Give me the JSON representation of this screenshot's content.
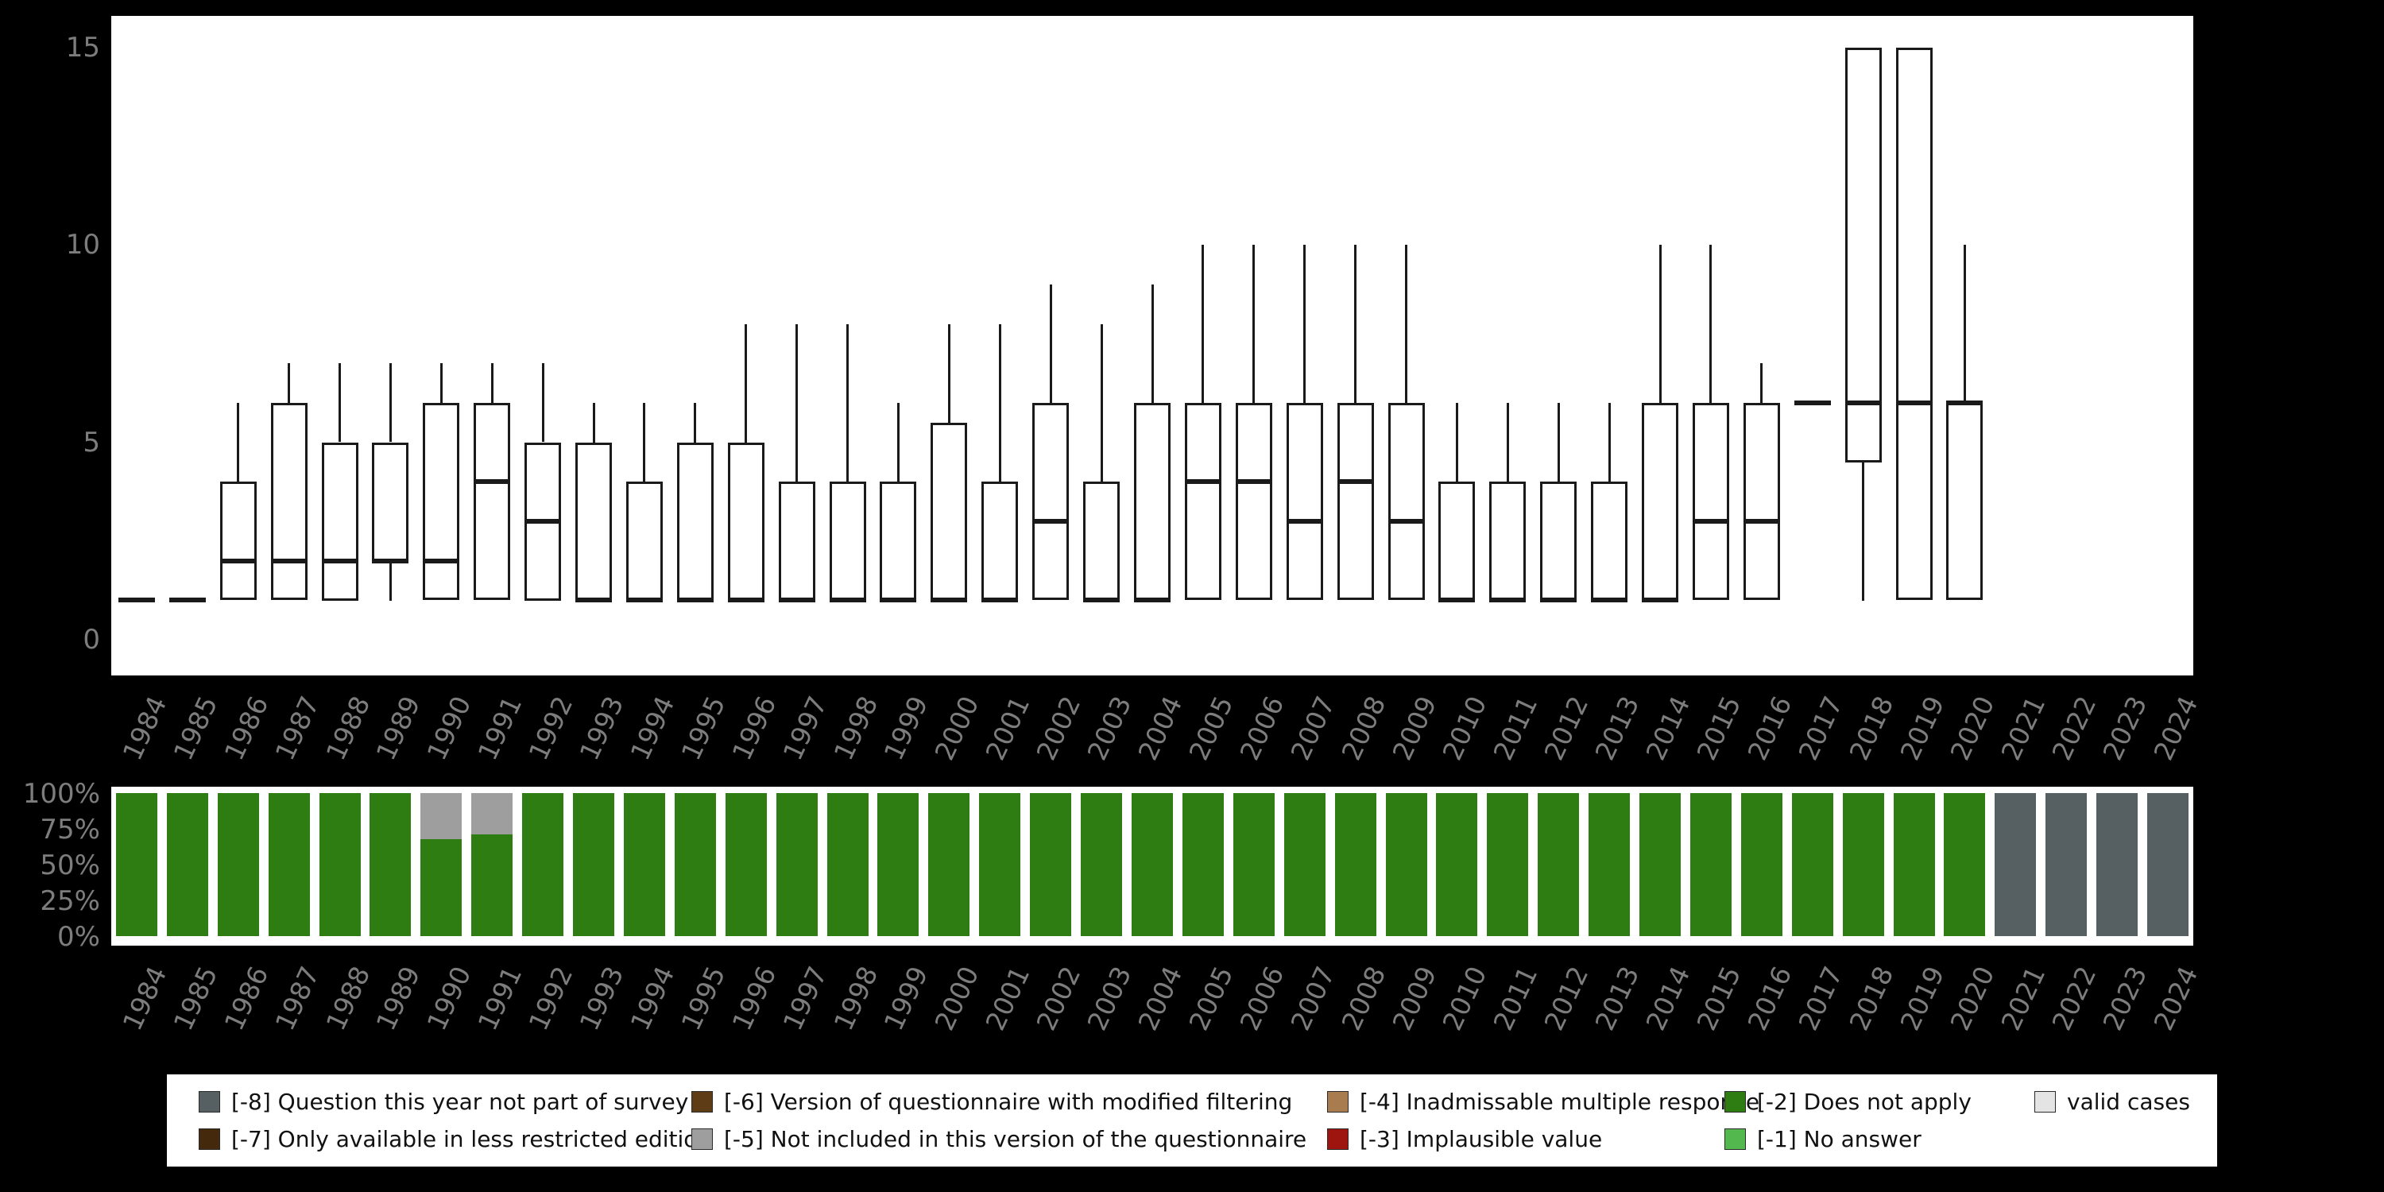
{
  "chart_data": [
    {
      "id": "boxplots-by-year",
      "type": "boxplot",
      "title": "",
      "xlabel": "",
      "ylabel": "",
      "ylim": [
        0,
        15
      ],
      "yticks": [
        0,
        5,
        10,
        15
      ],
      "grid": false,
      "years": [
        "1984",
        "1985",
        "1986",
        "1987",
        "1988",
        "1989",
        "1990",
        "1991",
        "1992",
        "1993",
        "1994",
        "1995",
        "1996",
        "1997",
        "1998",
        "1999",
        "2000",
        "2001",
        "2002",
        "2003",
        "2004",
        "2005",
        "2006",
        "2007",
        "2008",
        "2009",
        "2010",
        "2011",
        "2012",
        "2013",
        "2014",
        "2015",
        "2016",
        "2017",
        "2018",
        "2019",
        "2020",
        "2021",
        "2022",
        "2023",
        "2024"
      ],
      "boxes": [
        {
          "min": 1,
          "q1": 1,
          "median": 1,
          "q3": 1,
          "max": 1
        },
        {
          "min": 1,
          "q1": 1,
          "median": 1,
          "q3": 1,
          "max": 1
        },
        {
          "min": 1,
          "q1": 1,
          "median": 2,
          "q3": 4,
          "max": 6
        },
        {
          "min": 1,
          "q1": 1,
          "median": 2,
          "q3": 6,
          "max": 7
        },
        {
          "min": 1,
          "q1": 1,
          "median": 2,
          "q3": 5,
          "max": 7
        },
        {
          "min": 1,
          "q1": 2,
          "median": 2,
          "q3": 5,
          "max": 7
        },
        {
          "min": 1,
          "q1": 1,
          "median": 2,
          "q3": 6,
          "max": 7
        },
        {
          "min": 1,
          "q1": 1,
          "median": 4,
          "q3": 6,
          "max": 7
        },
        {
          "min": 1,
          "q1": 1,
          "median": 3,
          "q3": 5,
          "max": 7
        },
        {
          "min": 1,
          "q1": 1,
          "median": 1,
          "q3": 5,
          "max": 6
        },
        {
          "min": 1,
          "q1": 1,
          "median": 1,
          "q3": 4,
          "max": 6
        },
        {
          "min": 1,
          "q1": 1,
          "median": 1,
          "q3": 5,
          "max": 6
        },
        {
          "min": 1,
          "q1": 1,
          "median": 1,
          "q3": 5,
          "max": 8
        },
        {
          "min": 1,
          "q1": 1,
          "median": 1,
          "q3": 4,
          "max": 8
        },
        {
          "min": 1,
          "q1": 1,
          "median": 1,
          "q3": 4,
          "max": 8
        },
        {
          "min": 1,
          "q1": 1,
          "median": 1,
          "q3": 4,
          "max": 6
        },
        {
          "min": 1,
          "q1": 1,
          "median": 1,
          "q3": 5.5,
          "max": 8
        },
        {
          "min": 1,
          "q1": 1,
          "median": 1,
          "q3": 4,
          "max": 8
        },
        {
          "min": 1,
          "q1": 1,
          "median": 3,
          "q3": 6,
          "max": 9
        },
        {
          "min": 1,
          "q1": 1,
          "median": 1,
          "q3": 4,
          "max": 8
        },
        {
          "min": 1,
          "q1": 1,
          "median": 1,
          "q3": 6,
          "max": 9
        },
        {
          "min": 1,
          "q1": 1,
          "median": 4,
          "q3": 6,
          "max": 10
        },
        {
          "min": 1,
          "q1": 1,
          "median": 4,
          "q3": 6,
          "max": 10
        },
        {
          "min": 1,
          "q1": 1,
          "median": 3,
          "q3": 6,
          "max": 10
        },
        {
          "min": 1,
          "q1": 1,
          "median": 4,
          "q3": 6,
          "max": 10
        },
        {
          "min": 1,
          "q1": 1,
          "median": 3,
          "q3": 6,
          "max": 10
        },
        {
          "min": 1,
          "q1": 1,
          "median": 1,
          "q3": 4,
          "max": 6
        },
        {
          "min": 1,
          "q1": 1,
          "median": 1,
          "q3": 4,
          "max": 6
        },
        {
          "min": 1,
          "q1": 1,
          "median": 1,
          "q3": 4,
          "max": 6
        },
        {
          "min": 1,
          "q1": 1,
          "median": 1,
          "q3": 4,
          "max": 6
        },
        {
          "min": 1,
          "q1": 1,
          "median": 1,
          "q3": 6,
          "max": 10
        },
        {
          "min": 1,
          "q1": 1,
          "median": 3,
          "q3": 6,
          "max": 10
        },
        {
          "min": 1,
          "q1": 1,
          "median": 3,
          "q3": 6,
          "max": 7
        },
        {
          "min": 6,
          "q1": 6,
          "median": 6,
          "q3": 6,
          "max": 6
        },
        {
          "min": 1,
          "q1": 4.5,
          "median": 6,
          "q3": 15,
          "max": 15
        },
        {
          "min": 1,
          "q1": 1,
          "median": 6,
          "q3": 15,
          "max": 15
        },
        {
          "min": 1,
          "q1": 1,
          "median": 6,
          "q3": 6,
          "max": 10
        },
        null,
        null,
        null,
        null
      ]
    },
    {
      "id": "missing-value-composition",
      "type": "stacked-bar-percent",
      "title": "",
      "ylim": [
        0,
        100
      ],
      "yticks": [
        "0%",
        "25%",
        "50%",
        "75%",
        "100%"
      ],
      "years": [
        "1984",
        "1985",
        "1986",
        "1987",
        "1988",
        "1989",
        "1990",
        "1991",
        "1992",
        "1993",
        "1994",
        "1995",
        "1996",
        "1997",
        "1998",
        "1999",
        "2000",
        "2001",
        "2002",
        "2003",
        "2004",
        "2005",
        "2006",
        "2007",
        "2008",
        "2009",
        "2010",
        "2011",
        "2012",
        "2013",
        "2014",
        "2015",
        "2016",
        "2017",
        "2018",
        "2019",
        "2020",
        "2021",
        "2022",
        "2023",
        "2024"
      ],
      "bars": [
        {
          "segments": [
            {
              "code": "[-2]",
              "pct": 100
            }
          ]
        },
        {
          "segments": [
            {
              "code": "[-2]",
              "pct": 100
            }
          ]
        },
        {
          "segments": [
            {
              "code": "[-2]",
              "pct": 100
            }
          ]
        },
        {
          "segments": [
            {
              "code": "[-2]",
              "pct": 100
            }
          ]
        },
        {
          "segments": [
            {
              "code": "[-2]",
              "pct": 100
            }
          ]
        },
        {
          "segments": [
            {
              "code": "[-2]",
              "pct": 100
            }
          ]
        },
        {
          "segments": [
            {
              "code": "[-2]",
              "pct": 68
            },
            {
              "code": "[-5]",
              "pct": 32
            }
          ]
        },
        {
          "segments": [
            {
              "code": "[-2]",
              "pct": 71
            },
            {
              "code": "[-5]",
              "pct": 29
            }
          ]
        },
        {
          "segments": [
            {
              "code": "[-2]",
              "pct": 100
            }
          ]
        },
        {
          "segments": [
            {
              "code": "[-2]",
              "pct": 100
            }
          ]
        },
        {
          "segments": [
            {
              "code": "[-2]",
              "pct": 100
            }
          ]
        },
        {
          "segments": [
            {
              "code": "[-2]",
              "pct": 100
            }
          ]
        },
        {
          "segments": [
            {
              "code": "[-2]",
              "pct": 100
            }
          ]
        },
        {
          "segments": [
            {
              "code": "[-2]",
              "pct": 100
            }
          ]
        },
        {
          "segments": [
            {
              "code": "[-2]",
              "pct": 100
            }
          ]
        },
        {
          "segments": [
            {
              "code": "[-2]",
              "pct": 100
            }
          ]
        },
        {
          "segments": [
            {
              "code": "[-2]",
              "pct": 100
            }
          ]
        },
        {
          "segments": [
            {
              "code": "[-2]",
              "pct": 100
            }
          ]
        },
        {
          "segments": [
            {
              "code": "[-2]",
              "pct": 100
            }
          ]
        },
        {
          "segments": [
            {
              "code": "[-2]",
              "pct": 100
            }
          ]
        },
        {
          "segments": [
            {
              "code": "[-2]",
              "pct": 100
            }
          ]
        },
        {
          "segments": [
            {
              "code": "[-2]",
              "pct": 100
            }
          ]
        },
        {
          "segments": [
            {
              "code": "[-2]",
              "pct": 100
            }
          ]
        },
        {
          "segments": [
            {
              "code": "[-2]",
              "pct": 100
            }
          ]
        },
        {
          "segments": [
            {
              "code": "[-2]",
              "pct": 100
            }
          ]
        },
        {
          "segments": [
            {
              "code": "[-2]",
              "pct": 100
            }
          ]
        },
        {
          "segments": [
            {
              "code": "[-2]",
              "pct": 100
            }
          ]
        },
        {
          "segments": [
            {
              "code": "[-2]",
              "pct": 100
            }
          ]
        },
        {
          "segments": [
            {
              "code": "[-2]",
              "pct": 100
            }
          ]
        },
        {
          "segments": [
            {
              "code": "[-2]",
              "pct": 100
            }
          ]
        },
        {
          "segments": [
            {
              "code": "[-2]",
              "pct": 100
            }
          ]
        },
        {
          "segments": [
            {
              "code": "[-2]",
              "pct": 100
            }
          ]
        },
        {
          "segments": [
            {
              "code": "[-2]",
              "pct": 100
            }
          ]
        },
        {
          "segments": [
            {
              "code": "[-2]",
              "pct": 100
            }
          ]
        },
        {
          "segments": [
            {
              "code": "[-2]",
              "pct": 100
            }
          ]
        },
        {
          "segments": [
            {
              "code": "[-2]",
              "pct": 100
            }
          ]
        },
        {
          "segments": [
            {
              "code": "[-2]",
              "pct": 100
            }
          ]
        },
        {
          "segments": [
            {
              "code": "[-8]",
              "pct": 100
            }
          ]
        },
        {
          "segments": [
            {
              "code": "[-8]",
              "pct": 100
            }
          ]
        },
        {
          "segments": [
            {
              "code": "[-8]",
              "pct": 100
            }
          ]
        },
        {
          "segments": [
            {
              "code": "[-8]",
              "pct": 100
            }
          ]
        }
      ]
    }
  ],
  "legend": {
    "rows": [
      [
        {
          "code": "[-8]",
          "label": "[-8] Question this year not part of survey",
          "color": "#565f61"
        },
        {
          "code": "[-6]",
          "label": "[-6] Version of questionnaire with modified filtering",
          "color": "#5e3c16"
        },
        {
          "code": "[-4]",
          "label": "[-4] Inadmissable multiple response",
          "color": "#a87c4f"
        },
        {
          "code": "[-2]",
          "label": "[-2] Does not apply",
          "color": "#2e7d13"
        },
        {
          "code": "valid",
          "label": "valid cases",
          "color": "#e4e4e4"
        }
      ],
      [
        {
          "code": "[-7]",
          "label": "[-7] Only available in less restricted edition",
          "color": "#45290c"
        },
        {
          "code": "[-5]",
          "label": "[-5] Not included in this version of the questionnaire",
          "color": "#9e9e9e"
        },
        {
          "code": "[-3]",
          "label": "[-3] Implausible value",
          "color": "#9e1510"
        },
        {
          "code": "[-1]",
          "label": "[-1] No answer",
          "color": "#53b94e"
        }
      ]
    ]
  }
}
